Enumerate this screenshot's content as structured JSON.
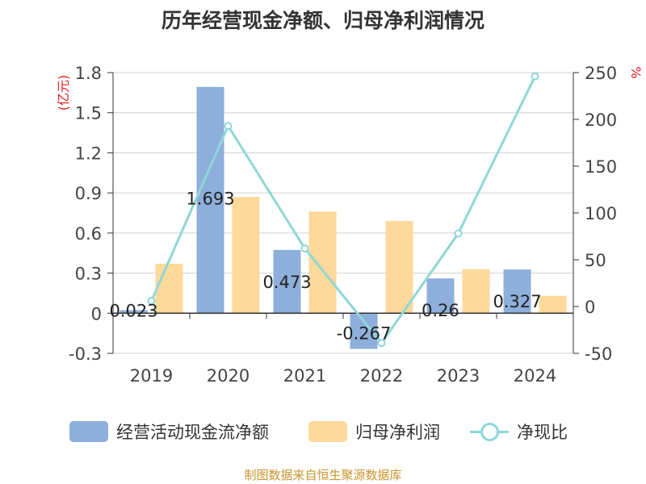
{
  "chart_data": {
    "type": "bar",
    "title": "历年经营现金净额、归母净利润情况",
    "categories": [
      "2019",
      "2020",
      "2021",
      "2022",
      "2023",
      "2024"
    ],
    "left_axis": {
      "unit": "(亿元)",
      "ylim": [
        -0.3,
        1.8
      ],
      "ticks": [
        "-0.3",
        "0",
        "0.3",
        "0.6",
        "0.9",
        "1.2",
        "1.5",
        "1.8"
      ]
    },
    "right_axis": {
      "unit": "%",
      "ylim": [
        -50,
        250
      ],
      "ticks": [
        "-50",
        "0",
        "50",
        "100",
        "150",
        "200",
        "250"
      ]
    },
    "series": [
      {
        "name": "经营活动现金流净额",
        "kind": "bar",
        "axis": "left",
        "color": "#8eafdb",
        "values": [
          0.023,
          1.693,
          0.473,
          -0.267,
          0.26,
          0.327
        ],
        "labels": [
          "0.023",
          "1.693",
          "0.473",
          "-0.267",
          "0.26",
          "0.327"
        ]
      },
      {
        "name": "归母净利润",
        "kind": "bar",
        "axis": "left",
        "color": "#fdd99a",
        "values": [
          0.37,
          0.87,
          0.76,
          0.69,
          0.33,
          0.13
        ]
      },
      {
        "name": "净现比",
        "kind": "line",
        "axis": "right",
        "color": "#8fd6d8",
        "values": [
          6,
          193,
          62,
          -39,
          78,
          246
        ]
      }
    ],
    "legend_position": "bottom",
    "grid": true
  },
  "footer": {
    "source": "制图数据来自恒生聚源数据库"
  }
}
